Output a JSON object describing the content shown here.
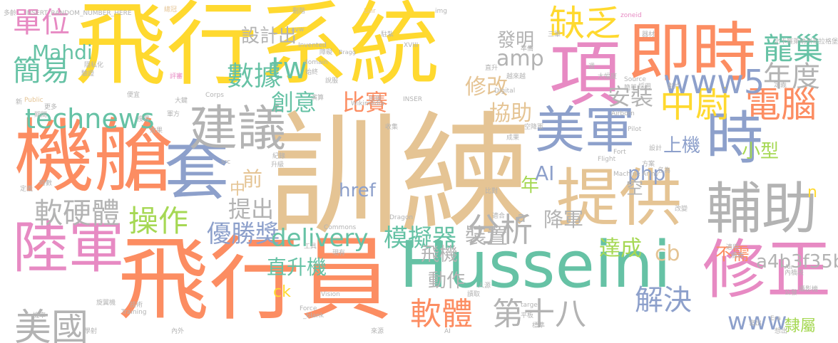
{
  "words": [
    {
      "text": "訓練",
      "color": "#e5c494"
    },
    {
      "text": "飛行系統",
      "color": "#ffd92f"
    },
    {
      "text": "飛行員",
      "color": "#fc8d62"
    },
    {
      "text": "機艙",
      "color": "#fc8d62"
    },
    {
      "text": "Husseini",
      "color": "#66c2a5"
    },
    {
      "text": "即時",
      "color": "#fc8d62"
    },
    {
      "text": "項",
      "color": "#e78ac3"
    },
    {
      "text": "提供",
      "color": "#e5c494"
    },
    {
      "text": "美軍",
      "color": "#8da0cb"
    },
    {
      "text": "套",
      "color": "#8da0cb"
    },
    {
      "text": "建議",
      "color": "#b3b3b3"
    },
    {
      "text": "陸軍",
      "color": "#e78ac3"
    },
    {
      "text": "修正",
      "color": "#e78ac3"
    },
    {
      "text": "輔助",
      "color": "#b3b3b3"
    },
    {
      "text": "時",
      "color": "#8da0cb"
    },
    {
      "text": "電腦",
      "color": "#fc8d62"
    },
    {
      "text": "中尉",
      "color": "#ffd92f"
    },
    {
      "text": "缺乏",
      "color": "#ffd92f"
    },
    {
      "text": "www5",
      "color": "#8da0cb"
    },
    {
      "text": "龍巢",
      "color": "#66c2a5"
    },
    {
      "text": "年度",
      "color": "#b3b3b3"
    },
    {
      "text": "單位",
      "color": "#e78ac3"
    },
    {
      "text": "簡易",
      "color": "#66c2a5"
    },
    {
      "text": "Mahdi",
      "color": "#66c2a5"
    },
    {
      "text": "technews",
      "color": "#66c2a5"
    },
    {
      "text": "數據",
      "color": "#66c2a5"
    },
    {
      "text": "設計出",
      "color": "#b3b3b3"
    },
    {
      "text": "amp",
      "color": "#b3b3b3"
    },
    {
      "text": "tw",
      "color": "#66c2a5"
    },
    {
      "text": "創意",
      "color": "#66c2a5"
    },
    {
      "text": "比賽",
      "color": "#fc8d62"
    },
    {
      "text": "修改",
      "color": "#e5c494"
    },
    {
      "text": "協助",
      "color": "#e5c494"
    },
    {
      "text": "安裝",
      "color": "#b3b3b3"
    },
    {
      "text": "發明",
      "color": "#b3b3b3"
    },
    {
      "text": "上機",
      "color": "#8da0cb"
    },
    {
      "text": "小型",
      "color": "#a6d854"
    },
    {
      "text": "php",
      "color": "#8da0cb"
    },
    {
      "text": "href",
      "color": "#8da0cb"
    },
    {
      "text": "前",
      "color": "#e5c494"
    },
    {
      "text": "中",
      "color": "#e5c494"
    },
    {
      "text": "年",
      "color": "#a6d854"
    },
    {
      "text": "AI",
      "color": "#8da0cb"
    },
    {
      "text": "空",
      "color": "#b3b3b3"
    },
    {
      "text": "n",
      "color": "#ffd92f"
    },
    {
      "text": "軟硬體",
      "color": "#b3b3b3"
    },
    {
      "text": "操作",
      "color": "#a6d854"
    },
    {
      "text": "提出",
      "color": "#b3b3b3"
    },
    {
      "text": "優勝獎",
      "color": "#8da0cb"
    },
    {
      "text": "分析",
      "color": "#b3b3b3"
    },
    {
      "text": "delivery",
      "color": "#66c2a5"
    },
    {
      "text": "模擬器",
      "color": "#66c2a5"
    },
    {
      "text": "裝置",
      "color": "#b3b3b3"
    },
    {
      "text": "降軍",
      "color": "#b3b3b3"
    },
    {
      "text": "a",
      "color": "#b3b3b3"
    },
    {
      "text": "達成",
      "color": "#a6d854"
    },
    {
      "text": "cb",
      "color": "#e5c494"
    },
    {
      "text": "不需",
      "color": "#fc8d62"
    },
    {
      "text": "a4b3f35b",
      "color": "#b3b3b3"
    },
    {
      "text": "飛機",
      "color": "#b3b3b3"
    },
    {
      "text": "直升機",
      "color": "#66c2a5"
    },
    {
      "text": "動作",
      "color": "#b3b3b3"
    },
    {
      "text": "美國",
      "color": "#b3b3b3"
    },
    {
      "text": "ck",
      "color": "#ffd92f"
    },
    {
      "text": "軟體",
      "color": "#fc8d62"
    },
    {
      "text": "第十八",
      "color": "#b3b3b3"
    },
    {
      "text": "解決",
      "color": "#8da0cb"
    },
    {
      "text": "www",
      "color": "#8da0cb"
    },
    {
      "text": "隸屬",
      "color": "#a6d854"
    },
    {
      "text": "多齡",
      "color": "#b3b3b3"
    },
    {
      "text": "INSERT_RANDOM_NUMBER_HERE",
      "color": "#b3b3b3"
    },
    {
      "text": "總冠",
      "color": "#e5c494"
    },
    {
      "text": "刪階",
      "color": "#b3b3b3"
    },
    {
      "text": "Lair",
      "color": "#e5c494"
    },
    {
      "text": "img",
      "color": "#b3b3b3"
    },
    {
      "text": "zoneid",
      "color": "#e78ac3"
    },
    {
      "text": "器材",
      "color": "#b3b3b3"
    },
    {
      "text": "北卡羅萊納州布拉格堡",
      "color": "#b3b3b3"
    },
    {
      "text": "Bragg",
      "color": "#b3b3b3"
    },
    {
      "text": "駐紮",
      "color": "#b3b3b3"
    },
    {
      "text": "三軍",
      "color": "#b3b3b3"
    },
    {
      "text": "準備",
      "color": "#b3b3b3"
    },
    {
      "text": "XVIII",
      "color": "#b3b3b3"
    },
    {
      "text": "Invented",
      "color": "#b3b3b3"
    },
    {
      "text": "avw",
      "color": "#b3b3b3"
    },
    {
      "text": "障礙",
      "color": "#b3b3b3"
    },
    {
      "text": "隱私化",
      "color": "#b3b3b3"
    },
    {
      "text": "驗證",
      "color": "#b3b3b3"
    },
    {
      "text": "評審",
      "color": "#e78ac3"
    },
    {
      "text": "domain",
      "color": "#b3b3b3"
    },
    {
      "text": "始終",
      "color": "#b3b3b3"
    },
    {
      "text": "直升",
      "color": "#b3b3b3"
    },
    {
      "text": "越來越",
      "color": "#b3b3b3"
    },
    {
      "text": "週",
      "color": "#b3b3b3"
    },
    {
      "text": "大幅度",
      "color": "#b3b3b3"
    },
    {
      "text": "簡單",
      "color": "#b3b3b3"
    },
    {
      "text": "採用",
      "color": "#b3b3b3"
    },
    {
      "text": "影片",
      "color": "#b3b3b3"
    },
    {
      "text": "Source",
      "color": "#b3b3b3"
    },
    {
      "text": "定義",
      "color": "#b3b3b3"
    },
    {
      "text": "新",
      "color": "#b3b3b3"
    },
    {
      "text": "Public",
      "color": "#e5c494"
    },
    {
      "text": "更多",
      "color": "#b3b3b3"
    },
    {
      "text": "期間",
      "color": "#b3b3b3"
    },
    {
      "text": "說服",
      "color": "#b3b3b3"
    },
    {
      "text": "Corps",
      "color": "#b3b3b3"
    },
    {
      "text": "便宜",
      "color": "#b3b3b3"
    },
    {
      "text": "Digital",
      "color": "#b3b3b3"
    },
    {
      "text": "出現",
      "color": "#b3b3b3"
    },
    {
      "text": "INSER",
      "color": "#b3b3b3"
    },
    {
      "text": "Wikimedia",
      "color": "#b3b3b3"
    },
    {
      "text": "演算",
      "color": "#b3b3b3"
    },
    {
      "text": "大鍵",
      "color": "#b3b3b3"
    },
    {
      "text": "軍方",
      "color": "#b3b3b3"
    },
    {
      "text": "搜尋",
      "color": "#b3b3b3"
    },
    {
      "text": "效果",
      "color": "#b3b3b3"
    },
    {
      "text": "Airborn",
      "color": "#b3b3b3"
    },
    {
      "text": "收集",
      "color": "#b3b3b3"
    },
    {
      "text": "空降軍",
      "color": "#b3b3b3"
    },
    {
      "text": "成果",
      "color": "#b3b3b3"
    },
    {
      "text": "Pilot",
      "color": "#b3b3b3"
    },
    {
      "text": "設計",
      "color": "#b3b3b3"
    },
    {
      "text": "Fort",
      "color": "#b3b3b3"
    },
    {
      "text": "Flight",
      "color": "#b3b3b3"
    },
    {
      "text": "Machine",
      "color": "#b3b3b3"
    },
    {
      "text": "Army",
      "color": "#b3b3b3"
    },
    {
      "text": "方案",
      "color": "#b3b3b3"
    },
    {
      "text": "名為",
      "color": "#b3b3b3"
    },
    {
      "text": "src",
      "color": "#b3b3b3"
    },
    {
      "text": "紀錄",
      "color": "#b3b3b3"
    },
    {
      "text": "升級",
      "color": "#b3b3b3"
    },
    {
      "text": "時數",
      "color": "#b3b3b3"
    },
    {
      "text": "定義",
      "color": "#b3b3b3"
    },
    {
      "text": "比對",
      "color": "#b3b3b3"
    },
    {
      "text": "Commons",
      "color": "#b3b3b3"
    },
    {
      "text": "Dragon",
      "color": "#b3b3b3"
    },
    {
      "text": "適合",
      "color": "#b3b3b3"
    },
    {
      "text": "改變",
      "color": "#b3b3b3"
    },
    {
      "text": "工具",
      "color": "#b3b3b3"
    },
    {
      "text": "現有",
      "color": "#b3b3b3"
    },
    {
      "text": "適用",
      "color": "#b3b3b3"
    },
    {
      "text": "備表",
      "color": "#b3b3b3"
    },
    {
      "text": "Vision",
      "color": "#b3b3b3"
    },
    {
      "text": "Force",
      "color": "#b3b3b3"
    },
    {
      "text": "人源",
      "color": "#b3b3b3"
    },
    {
      "text": "讀取",
      "color": "#b3b3b3"
    },
    {
      "text": "內橋表",
      "color": "#b3b3b3"
    },
    {
      "text": "Air",
      "color": "#b3b3b3"
    },
    {
      "text": "攝影機",
      "color": "#b3b3b3"
    },
    {
      "text": "公發",
      "color": "#b3b3b3"
    },
    {
      "text": "target",
      "color": "#b3b3b3"
    },
    {
      "text": "Training",
      "color": "#b3b3b3"
    },
    {
      "text": "旋翼機",
      "color": "#b3b3b3"
    },
    {
      "text": "技術",
      "color": "#b3b3b3"
    },
    {
      "text": "機率",
      "color": "#b3b3b3"
    },
    {
      "text": "_blank",
      "color": "#b3b3b3"
    },
    {
      "text": "Era",
      "color": "#b3b3b3"
    },
    {
      "text": "寫出",
      "color": "#b3b3b3"
    },
    {
      "text": "想出",
      "color": "#b3b3b3"
    },
    {
      "text": "標準",
      "color": "#b3b3b3"
    },
    {
      "text": "平板",
      "color": "#b3b3b3"
    },
    {
      "text": "學射",
      "color": "#b3b3b3"
    },
    {
      "text": "內外",
      "color": "#b3b3b3"
    },
    {
      "text": "來源",
      "color": "#b3b3b3"
    },
    {
      "text": "AI",
      "color": "#b3b3b3"
    }
  ]
}
